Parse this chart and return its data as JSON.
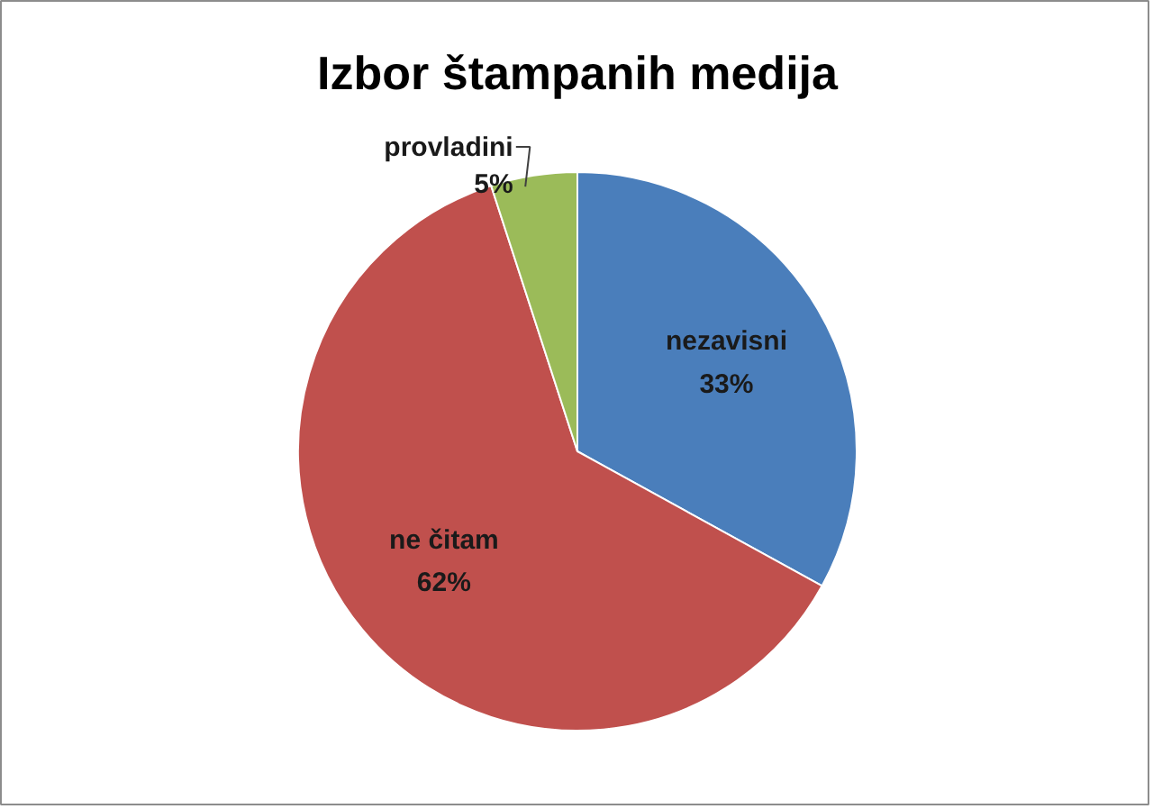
{
  "chart_data": {
    "type": "pie",
    "title": "Izbor štampanih medija",
    "categories": [
      "nezavisni",
      "ne čitam",
      "provladini"
    ],
    "values": [
      33,
      62,
      5
    ],
    "colors": [
      "#4a7ebb",
      "#c0504d",
      "#9bbb59"
    ],
    "value_labels": [
      "33%",
      "62%",
      "5%"
    ]
  }
}
